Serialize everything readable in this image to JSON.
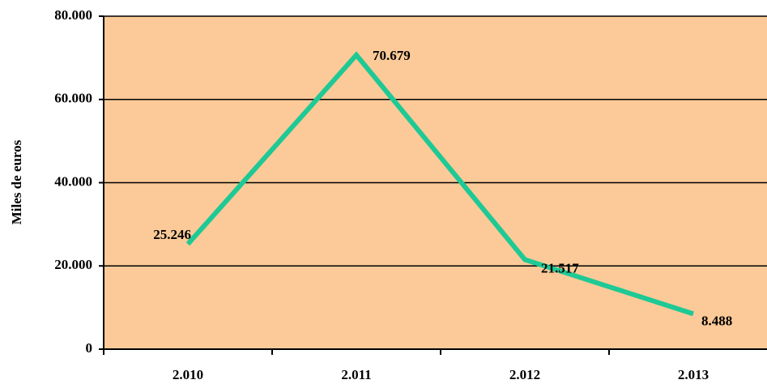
{
  "chart_data": {
    "type": "line",
    "y_label": "Miles de euros",
    "categories": [
      "2.010",
      "2.011",
      "2.012",
      "2.013"
    ],
    "series": [
      {
        "name": "Miles de euros",
        "color": "#1ec995",
        "values": [
          25246,
          70679,
          21517,
          8488
        ],
        "value_labels": [
          "25.246",
          "70.679",
          "21.517",
          "8.488"
        ]
      }
    ],
    "ylim": [
      0,
      80000
    ],
    "yticks": [
      0,
      {
        "value": 20000,
        "label": "20.000"
      },
      {
        "value": 40000,
        "label": "40.000"
      },
      {
        "value": 60000,
        "label": "60.000"
      },
      {
        "value": 80000,
        "label": "80.000"
      }
    ],
    "grid": true,
    "plot_background": "#fbca98"
  }
}
